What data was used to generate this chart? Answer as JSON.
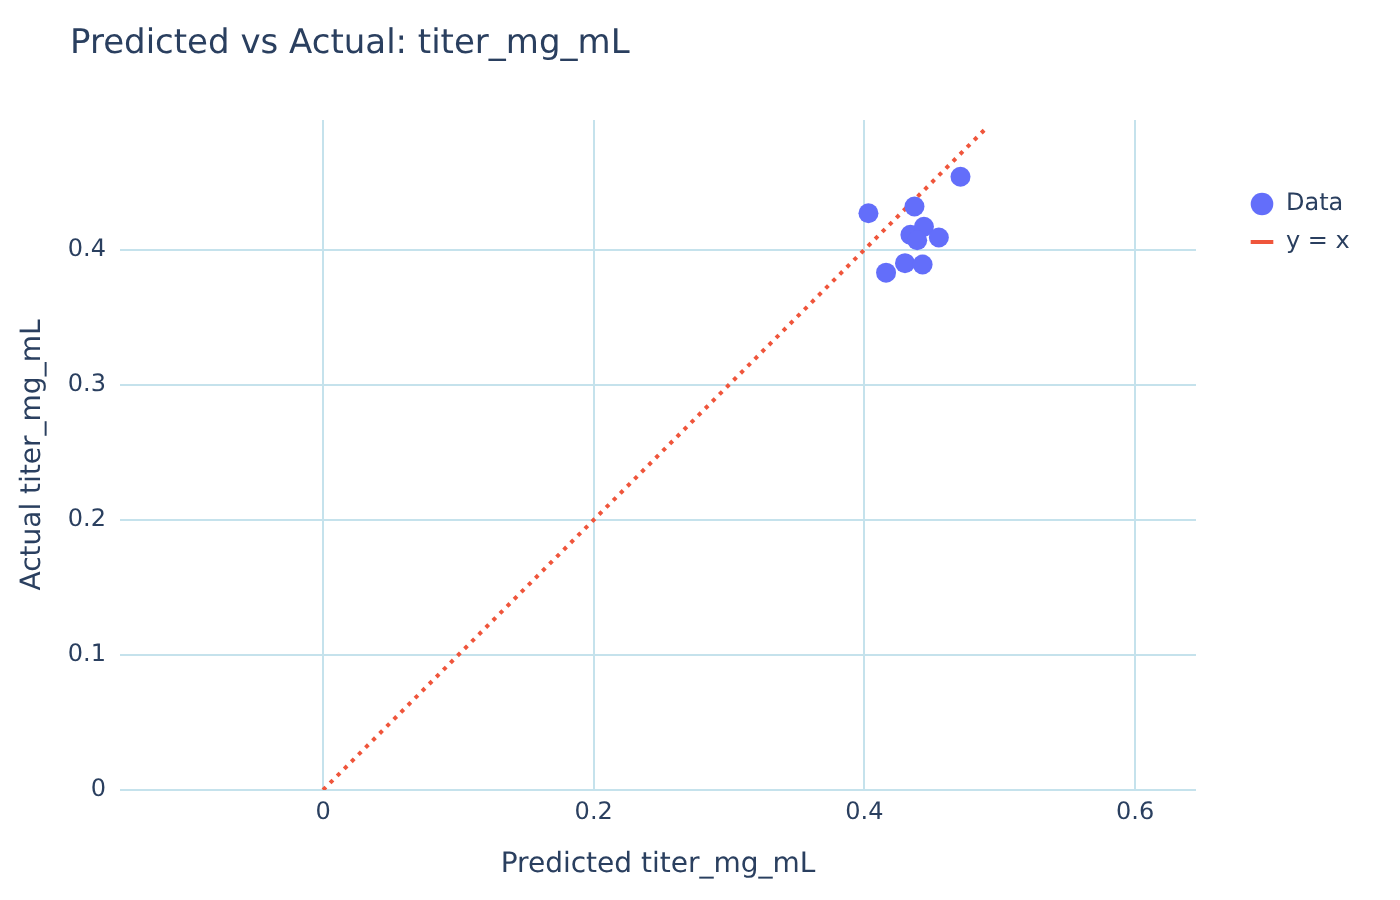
{
  "chart_data": {
    "type": "scatter",
    "title": "Predicted vs Actual: titer_mg_mL",
    "xlabel": "Predicted titer_mg_mL",
    "ylabel": "Actual titer_mg_mL",
    "series": [
      {
        "name": "Data",
        "type": "scatter",
        "color": "#636efa",
        "marker": "circle",
        "x": [
          0.403,
          0.437,
          0.471,
          0.434,
          0.444,
          0.439,
          0.455,
          0.416,
          0.43,
          0.443
        ],
        "values": [
          0.427,
          0.432,
          0.454,
          0.411,
          0.417,
          0.407,
          0.409,
          0.383,
          0.39,
          0.389
        ]
      },
      {
        "name": "y = x",
        "type": "line",
        "color": "#ef553b",
        "marker": "none",
        "line_style": "dotted",
        "x": [
          0,
          0.49
        ],
        "values": [
          0,
          0.49
        ]
      }
    ],
    "xlim": [
      -0.15,
      0.645
    ],
    "ylim": [
      0,
      0.496
    ],
    "xticks": [
      0,
      0.2,
      0.4,
      0.6
    ],
    "yticks": [
      0,
      0.1,
      0.2,
      0.3,
      0.4
    ],
    "grid": true,
    "legend": "top right"
  }
}
